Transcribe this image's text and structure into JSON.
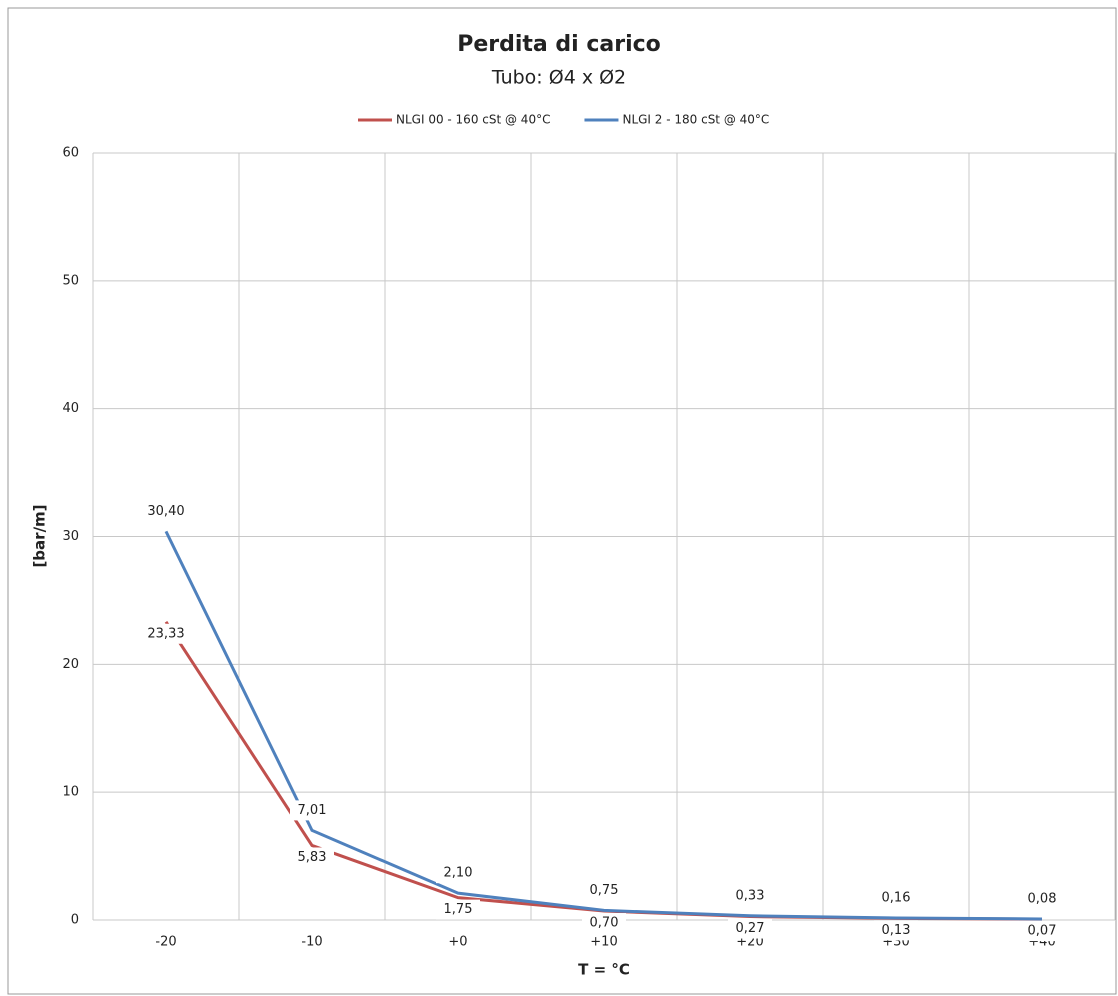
{
  "chart_data": {
    "type": "line",
    "title": "Perdita di carico",
    "subtitle": "Tubo: Ø4 x Ø2",
    "x_label": "T = °C",
    "y_label": "[bar/m]",
    "categories": [
      "-20",
      "-10",
      "+0",
      "+10",
      "+20",
      "+30",
      "+40"
    ],
    "series": [
      {
        "name": "NLGI 00 - 160 cSt @ 40°C",
        "color": "#c0504d",
        "values": [
          23.33,
          5.83,
          1.75,
          0.7,
          0.27,
          0.13,
          0.07
        ],
        "value_labels": [
          "23,33",
          "5,83",
          "1,75",
          "0,70",
          "0,27",
          "0,13",
          "0,07"
        ]
      },
      {
        "name": "NLGI 2 - 180 cSt @ 40°C",
        "color": "#4f81bd",
        "values": [
          30.4,
          7.01,
          2.1,
          0.75,
          0.33,
          0.16,
          0.08
        ],
        "value_labels": [
          "30,40",
          "7,01",
          "2,10",
          "0,75",
          "0,33",
          "0,16",
          "0,08"
        ]
      }
    ],
    "ylim": [
      0,
      60
    ],
    "yticks": [
      0,
      10,
      20,
      30,
      40,
      50,
      60
    ],
    "grid": true,
    "legend": "top"
  }
}
